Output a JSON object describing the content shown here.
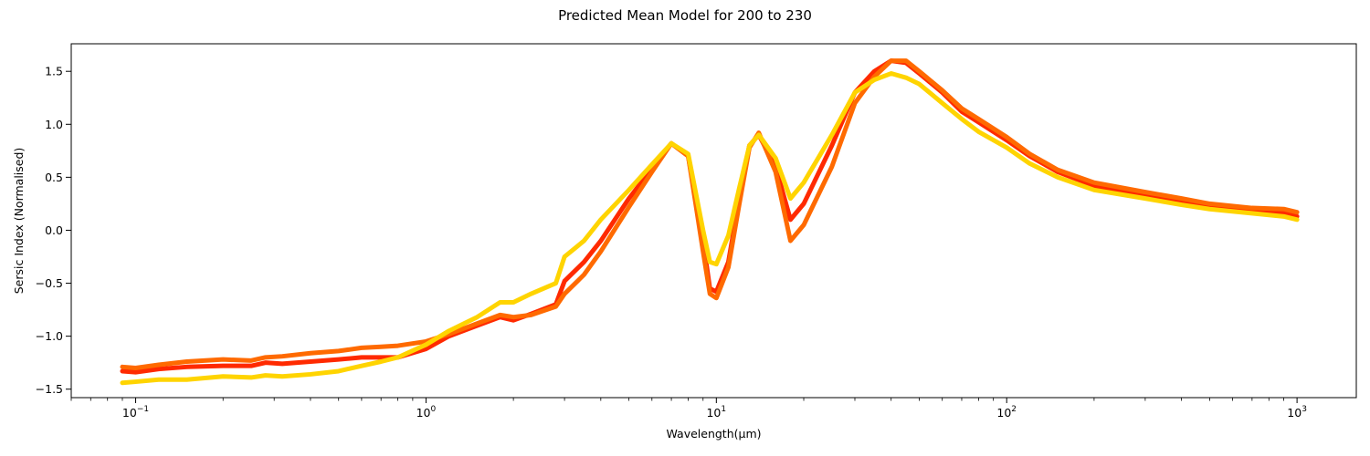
{
  "chart_data": {
    "type": "line",
    "title": "Predicted Mean Model for 200 to 230",
    "xlabel": "Wavelength(μm)",
    "ylabel": "Sersic Index (Normalised)",
    "xscale": "log",
    "xlim": [
      0.06,
      1600
    ],
    "ylim": [
      -1.58,
      1.76
    ],
    "grid": false,
    "x_ticks": [
      {
        "value": 0.1,
        "base": "10",
        "exp": "−1"
      },
      {
        "value": 1,
        "base": "10",
        "exp": "0"
      },
      {
        "value": 10,
        "base": "10",
        "exp": "1"
      },
      {
        "value": 100,
        "base": "10",
        "exp": "2"
      },
      {
        "value": 1000,
        "base": "10",
        "exp": "3"
      }
    ],
    "y_ticks": [
      {
        "value": -1.5,
        "label": "−1.5"
      },
      {
        "value": -1.0,
        "label": "−1.0"
      },
      {
        "value": -0.5,
        "label": "−0.5"
      },
      {
        "value": 0.0,
        "label": "0.0"
      },
      {
        "value": 0.5,
        "label": "0.5"
      },
      {
        "value": 1.0,
        "label": "1.0"
      },
      {
        "value": 1.5,
        "label": "1.5"
      }
    ],
    "series": [
      {
        "color": "#ff2a00",
        "x": [
          0.09,
          0.1,
          0.12,
          0.15,
          0.2,
          0.25,
          0.28,
          0.32,
          0.4,
          0.5,
          0.6,
          0.7,
          0.8,
          1,
          1.2,
          1.5,
          1.8,
          2,
          2.3,
          2.8,
          3,
          3.5,
          4,
          5,
          6,
          7,
          8,
          9,
          9.5,
          10,
          11,
          12,
          13,
          14,
          16,
          18,
          20,
          25,
          30,
          35,
          40,
          45,
          50,
          60,
          70,
          80,
          100,
          120,
          150,
          200,
          300,
          400,
          500,
          700,
          900,
          1000
        ],
        "y": [
          -1.33,
          -1.34,
          -1.31,
          -1.29,
          -1.28,
          -1.28,
          -1.25,
          -1.26,
          -1.24,
          -1.22,
          -1.2,
          -1.2,
          -1.2,
          -1.12,
          -1.0,
          -0.9,
          -0.82,
          -0.85,
          -0.79,
          -0.7,
          -0.48,
          -0.3,
          -0.1,
          0.3,
          0.58,
          0.82,
          0.7,
          -0.1,
          -0.55,
          -0.58,
          -0.3,
          0.3,
          0.8,
          0.9,
          0.6,
          0.1,
          0.25,
          0.8,
          1.3,
          1.5,
          1.6,
          1.58,
          1.48,
          1.3,
          1.12,
          1.02,
          0.85,
          0.7,
          0.55,
          0.42,
          0.33,
          0.27,
          0.22,
          0.18,
          0.16,
          0.13
        ]
      },
      {
        "color": "#ff6a00",
        "x": [
          0.09,
          0.1,
          0.12,
          0.15,
          0.2,
          0.25,
          0.28,
          0.32,
          0.4,
          0.5,
          0.6,
          0.7,
          0.8,
          1,
          1.2,
          1.5,
          1.8,
          2,
          2.3,
          2.8,
          3,
          3.5,
          4,
          5,
          6,
          7,
          8,
          9,
          9.5,
          10,
          11,
          12,
          13,
          14,
          16,
          18,
          20,
          25,
          30,
          35,
          40,
          45,
          50,
          60,
          70,
          80,
          100,
          120,
          150,
          200,
          300,
          400,
          500,
          700,
          900,
          1000
        ],
        "y": [
          -1.29,
          -1.3,
          -1.27,
          -1.24,
          -1.22,
          -1.23,
          -1.2,
          -1.19,
          -1.16,
          -1.14,
          -1.11,
          -1.1,
          -1.09,
          -1.05,
          -0.98,
          -0.88,
          -0.8,
          -0.82,
          -0.8,
          -0.72,
          -0.6,
          -0.42,
          -0.2,
          0.22,
          0.55,
          0.82,
          0.7,
          -0.2,
          -0.6,
          -0.64,
          -0.35,
          0.25,
          0.78,
          0.92,
          0.55,
          -0.1,
          0.05,
          0.6,
          1.2,
          1.45,
          1.6,
          1.6,
          1.5,
          1.32,
          1.15,
          1.05,
          0.88,
          0.72,
          0.57,
          0.45,
          0.36,
          0.3,
          0.25,
          0.21,
          0.2,
          0.17
        ]
      },
      {
        "color": "#ffd400",
        "x": [
          0.09,
          0.1,
          0.12,
          0.15,
          0.2,
          0.25,
          0.28,
          0.32,
          0.4,
          0.5,
          0.6,
          0.7,
          0.8,
          1,
          1.2,
          1.5,
          1.8,
          2,
          2.3,
          2.8,
          3,
          3.5,
          4,
          5,
          6,
          7,
          8,
          9,
          9.5,
          10,
          11,
          12,
          13,
          14,
          16,
          18,
          20,
          25,
          30,
          35,
          40,
          45,
          50,
          60,
          70,
          80,
          100,
          120,
          150,
          200,
          300,
          400,
          500,
          700,
          900,
          1000
        ],
        "y": [
          -1.44,
          -1.43,
          -1.41,
          -1.41,
          -1.38,
          -1.39,
          -1.37,
          -1.38,
          -1.36,
          -1.33,
          -1.28,
          -1.24,
          -1.2,
          -1.08,
          -0.95,
          -0.82,
          -0.68,
          -0.68,
          -0.6,
          -0.5,
          -0.25,
          -0.1,
          0.1,
          0.38,
          0.62,
          0.82,
          0.72,
          0.0,
          -0.3,
          -0.32,
          -0.05,
          0.4,
          0.8,
          0.9,
          0.68,
          0.3,
          0.45,
          0.9,
          1.3,
          1.42,
          1.48,
          1.44,
          1.38,
          1.2,
          1.05,
          0.93,
          0.78,
          0.63,
          0.5,
          0.38,
          0.3,
          0.24,
          0.2,
          0.16,
          0.13,
          0.1
        ]
      }
    ]
  }
}
